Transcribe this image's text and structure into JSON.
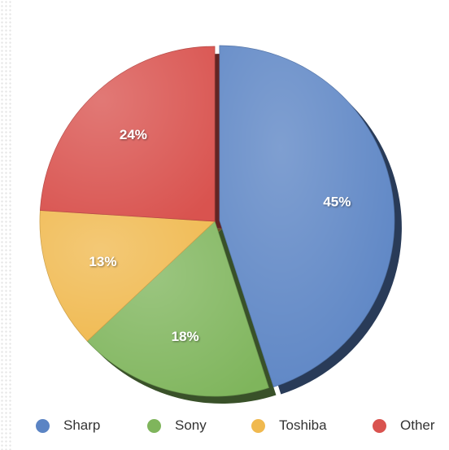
{
  "chart_data": {
    "type": "pie",
    "title": "",
    "slices": [
      {
        "label": "Sharp",
        "value": 45,
        "display": "45%",
        "color": "#5b84c4",
        "exploded": true
      },
      {
        "label": "Sony",
        "value": 18,
        "display": "18%",
        "color": "#7fb55c"
      },
      {
        "label": "Toshiba",
        "value": 13,
        "display": "13%",
        "color": "#f0b94f"
      },
      {
        "label": "Other",
        "value": 24,
        "display": "24%",
        "color": "#d9534f"
      }
    ],
    "start_angle": "12 o'clock",
    "direction": "clockwise",
    "legend_placement": "bottom"
  }
}
